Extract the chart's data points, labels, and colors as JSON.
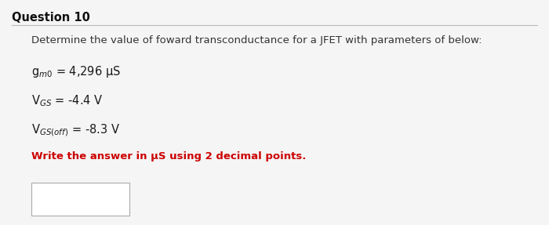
{
  "title": "Question 10",
  "main_bg": "#f5f5f5",
  "description": "Determine the value of foward transconductance for a JFET with parameters of below:",
  "param1": "g$_{m0}$ = 4,296 μS",
  "param2": "V$_{GS}$ = -4.4 V",
  "param3": "V$_{GS(off)}$ = -8.3 V",
  "instruction": "Write the answer in μS using 2 decimal points.",
  "title_fontsize": 10.5,
  "desc_fontsize": 9.5,
  "param_fontsize": 10.5,
  "instr_fontsize": 9.5,
  "title_color": "#111111",
  "desc_color": "#333333",
  "param_color": "#1a1a1a",
  "instr_color": "#cc0000",
  "line_color": "#bbbbbb",
  "box_color": "#aaaaaa"
}
